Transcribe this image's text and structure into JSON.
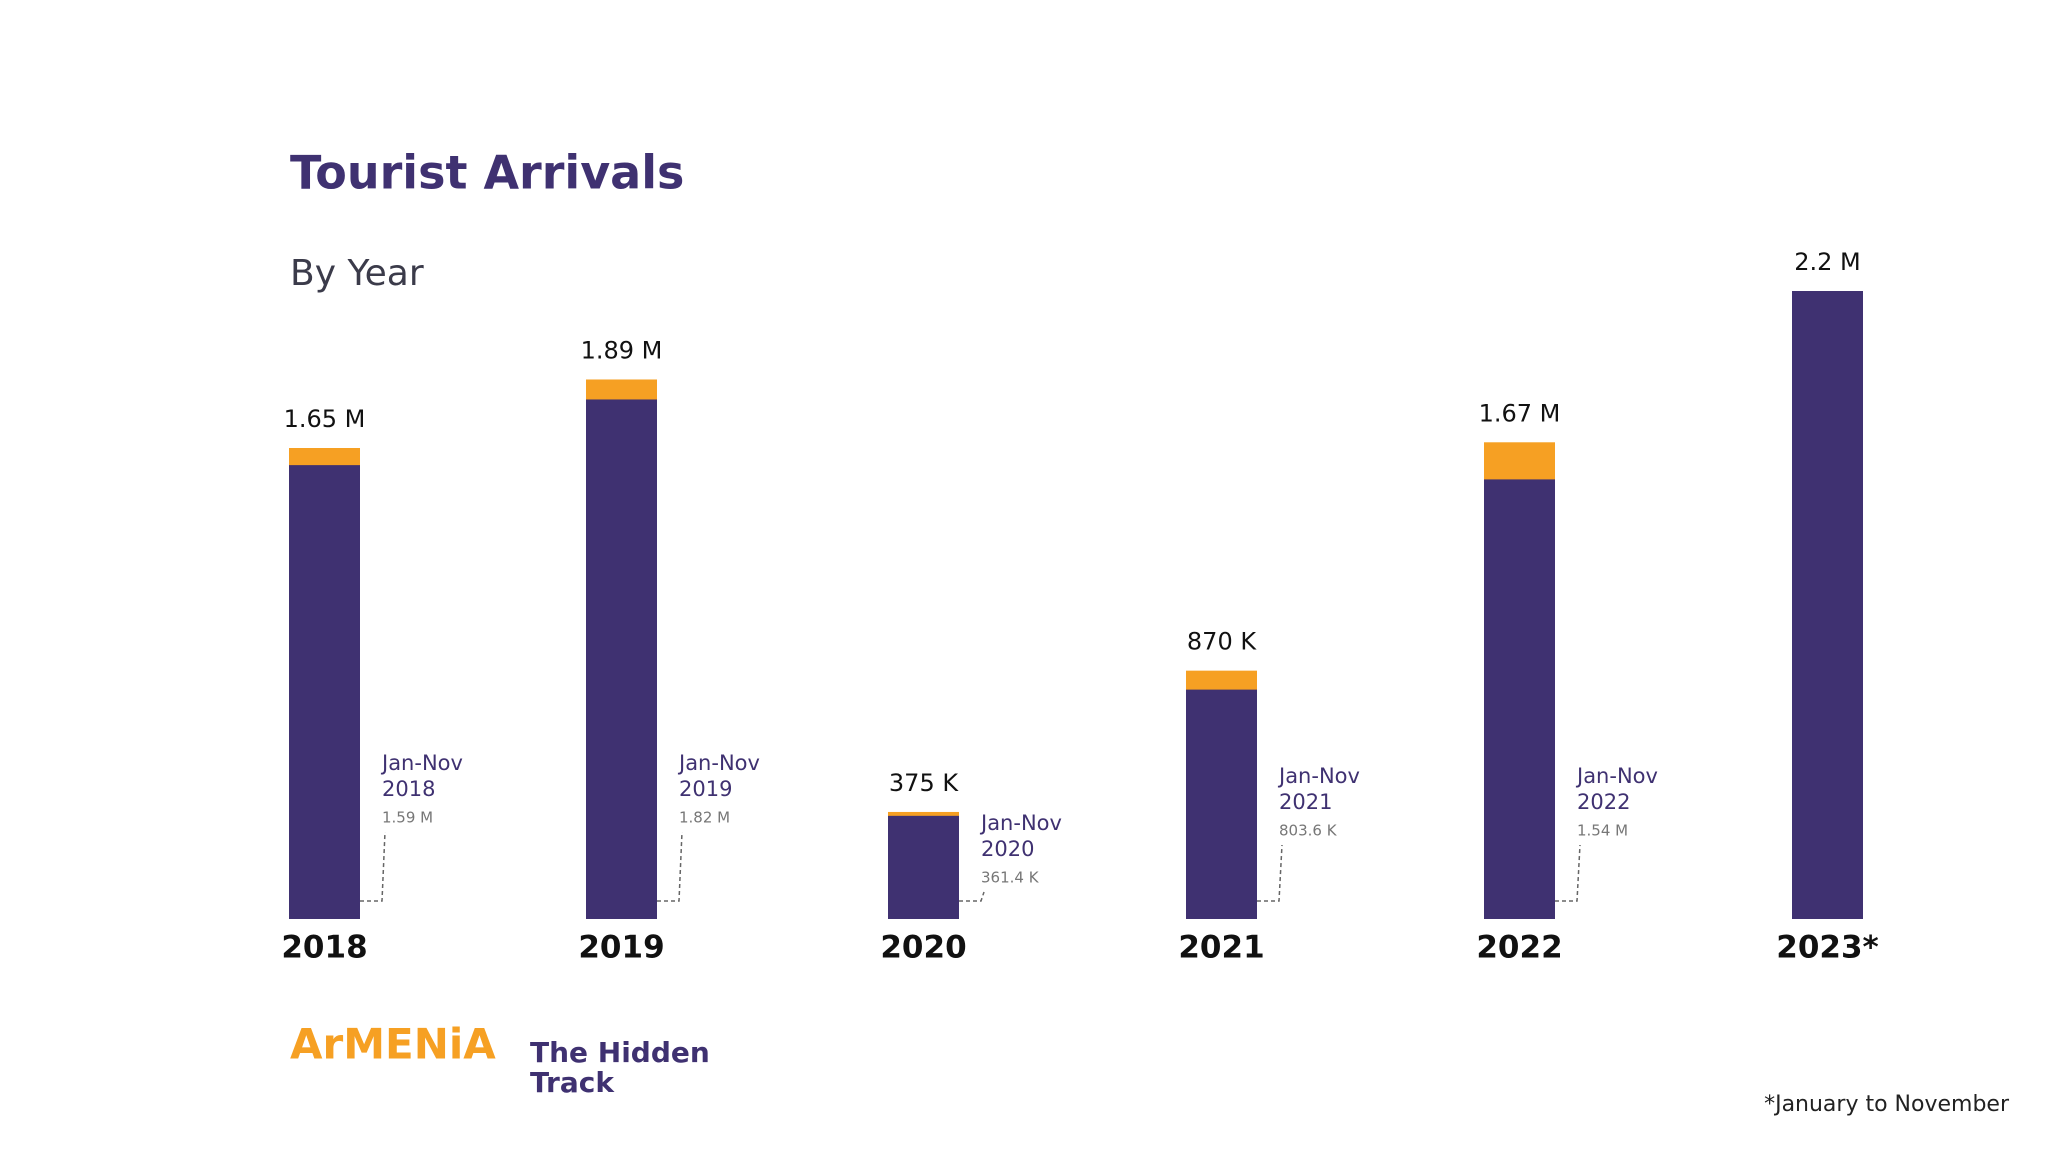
{
  "chart_data": {
    "type": "bar",
    "title": "Tourist Arrivals",
    "subtitle": "By Year",
    "categories": [
      "2018",
      "2019",
      "2020",
      "2021",
      "2022",
      "2023*"
    ],
    "annotation_label": "Jan-Nov",
    "series": [
      {
        "color": "#f6a023",
        "values": [
          1650000,
          1890000,
          375000,
          870000,
          1670000,
          null
        ],
        "value_labels": [
          "1.65 M",
          "1.89 M",
          "375 K",
          "870 K",
          "1.67 M",
          null
        ]
      },
      {
        "name": "Jan-Nov",
        "color": "#3f3171",
        "values": [
          1590000,
          1820000,
          361400,
          803600,
          1540000,
          2200000
        ],
        "value_labels": [
          "1.59 M",
          "1.82 M",
          "361.4 K",
          "803.6 K",
          "1.54 M",
          "2.2 M"
        ]
      }
    ],
    "footnote": "*January to November"
  },
  "logo": {
    "name": "ArMENiA",
    "tagline": [
      "The Hidden",
      "Track"
    ]
  }
}
